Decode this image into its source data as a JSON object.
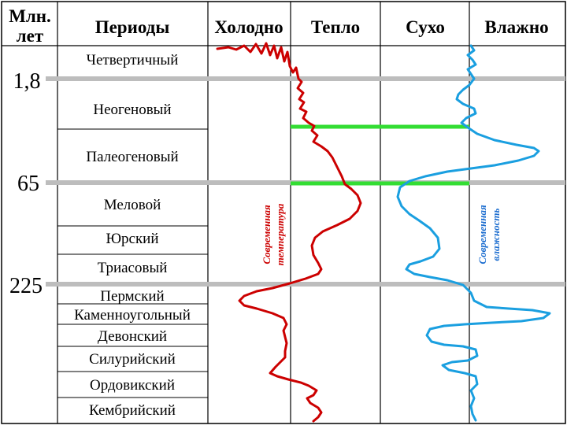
{
  "header": {
    "age_column": [
      "Млн.",
      "лет"
    ],
    "periods": "Периоды",
    "cold": "Холодно",
    "warm": "Тепло",
    "dry": "Сухо",
    "wet": "Влажно"
  },
  "age_marks": [
    "1,8",
    "65",
    "225"
  ],
  "periods": [
    "Четвертичный",
    "Неогеновый",
    "Палеогеновый",
    "Меловой",
    "Юрский",
    "Триасовый",
    "Пермский",
    "Каменноугольный",
    "Девонский",
    "Силурийский",
    "Ордовикский",
    "Кембрийский"
  ],
  "notes": {
    "temperature": [
      "Современная",
      "температура"
    ],
    "humidity": [
      "Современная",
      "влажность"
    ]
  },
  "colors": {
    "temperature_curve": "#cc0000",
    "humidity_curve": "#1a9fe0",
    "boundary_gray": "#bdbdbd",
    "green_bar": "#33dd33",
    "note_temperature": "#cc0000",
    "note_humidity": "#1a6ccf"
  }
}
